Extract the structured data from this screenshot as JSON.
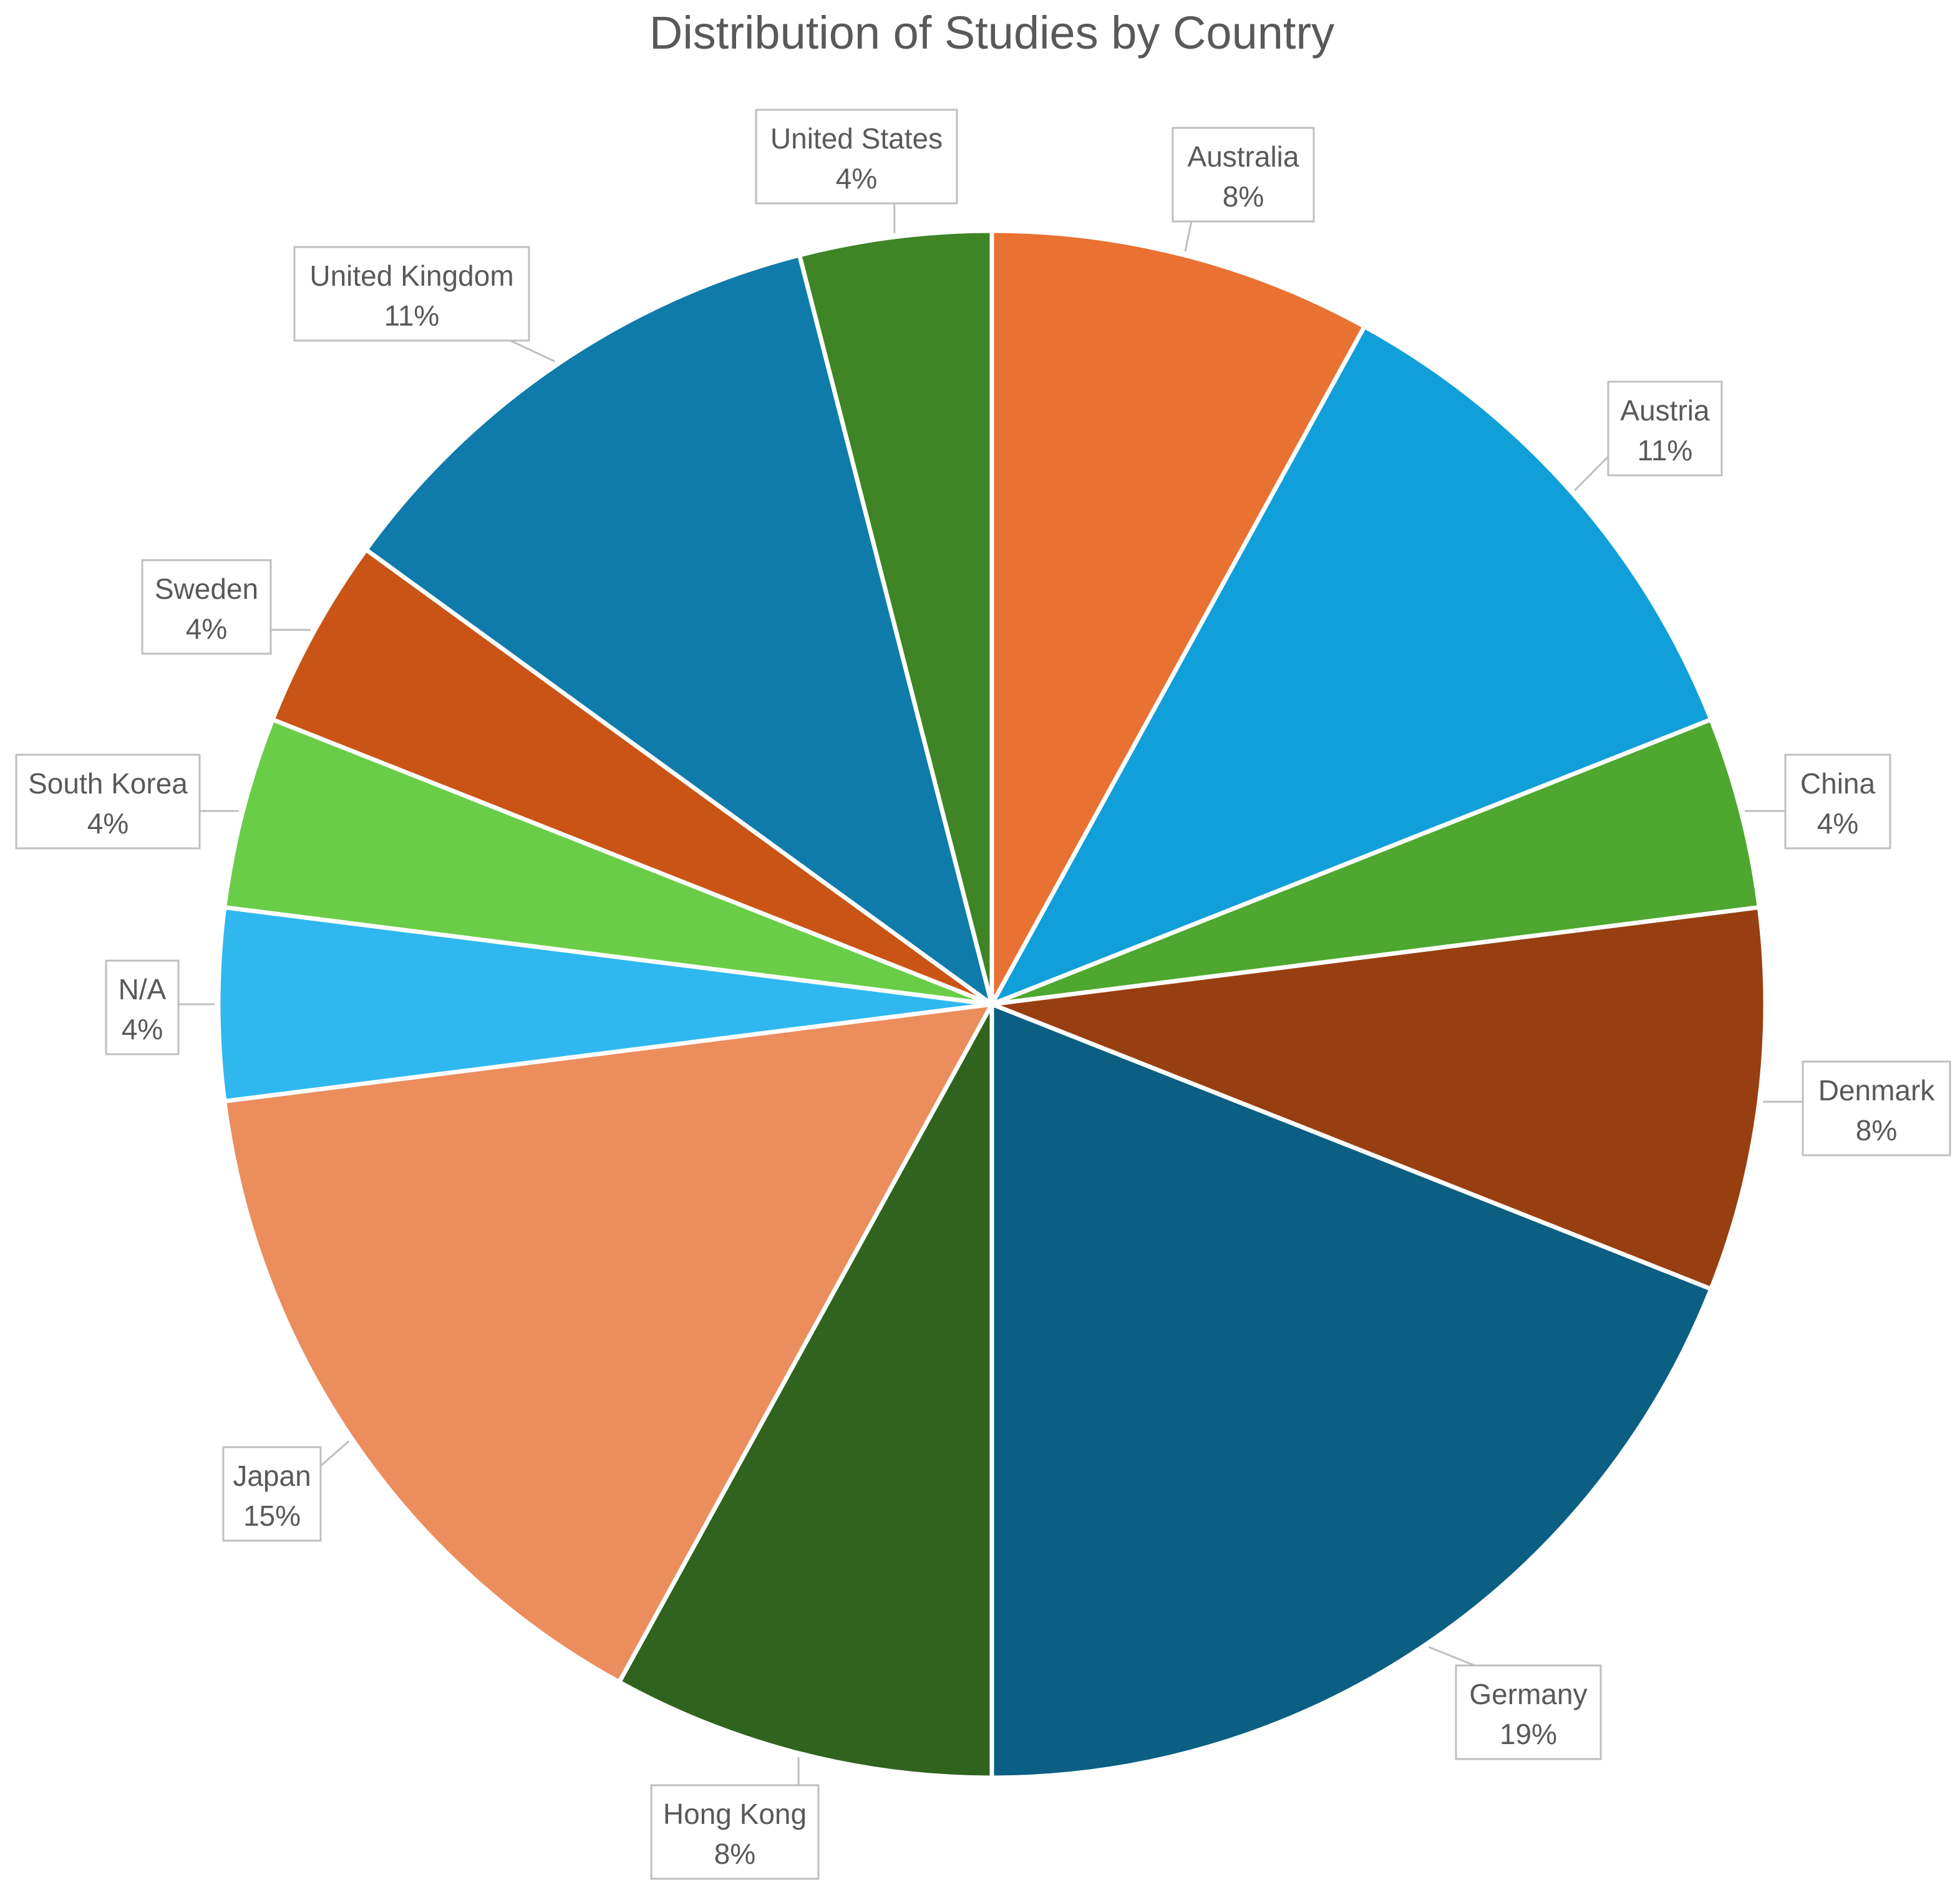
{
  "chart_data": {
    "type": "pie",
    "title": "Distribution of Studies by Country",
    "slices": [
      {
        "label": "Australia",
        "value": 8,
        "value_label": "8%",
        "color": "#E97132"
      },
      {
        "label": "Austria",
        "value": 11,
        "value_label": "11%",
        "color": "#119FD9"
      },
      {
        "label": "China",
        "value": 4,
        "value_label": "4%",
        "color": "#4EA72E"
      },
      {
        "label": "Denmark",
        "value": 8,
        "value_label": "8%",
        "color": "#983F12"
      },
      {
        "label": "Germany",
        "value": 19,
        "value_label": "19%",
        "color": "#0A5F82"
      },
      {
        "label": "Hong Kong",
        "value": 8,
        "value_label": "8%",
        "color": "#30631E"
      },
      {
        "label": "Japan",
        "value": 15,
        "value_label": "15%",
        "color": "#EB8D5D"
      },
      {
        "label": "N/A",
        "value": 4,
        "value_label": "4%",
        "color": "#2FB8EF"
      },
      {
        "label": "South Korea",
        "value": 4,
        "value_label": "4%",
        "color": "#6ACD47"
      },
      {
        "label": "Sweden",
        "value": 4,
        "value_label": "4%",
        "color": "#C95415"
      },
      {
        "label": "United Kingdom",
        "value": 11,
        "value_label": "11%",
        "color": "#0E7BAA"
      },
      {
        "label": "United States",
        "value": 4,
        "value_label": "4%",
        "color": "#3F8425"
      }
    ],
    "start_angle": "12 o'clock",
    "direction": "clockwise",
    "data_labels": "callouts with leader lines",
    "legend": "none"
  }
}
